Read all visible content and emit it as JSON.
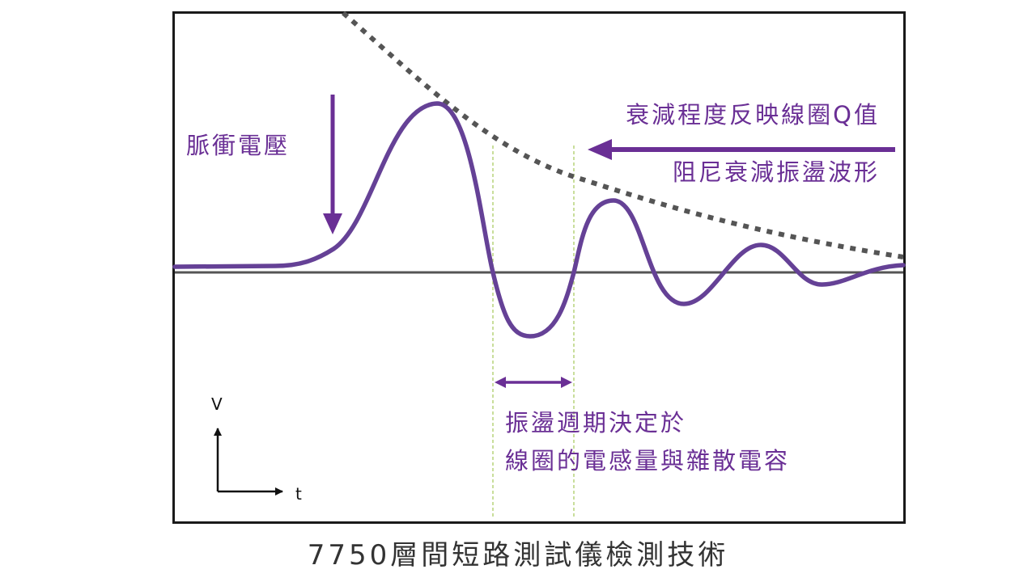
{
  "labels": {
    "pulse_voltage": "脈衝電壓",
    "decay_q": "衰減程度反映線圈Q值",
    "damped_wave": "阻尼衰減振盪波形",
    "period_line1": "振盪週期決定於",
    "period_line2": "線圈的電感量與雜散電容"
  },
  "axes": {
    "y": "V",
    "x": "t"
  },
  "caption": "7750層間短路測試儀檢測技術",
  "colors": {
    "accent": "#6a2f95",
    "waveform": "#654196",
    "envelope": "#555555",
    "guide": "#b7d37a",
    "baseline": "#555555",
    "frame": "#1a1a1a"
  }
}
